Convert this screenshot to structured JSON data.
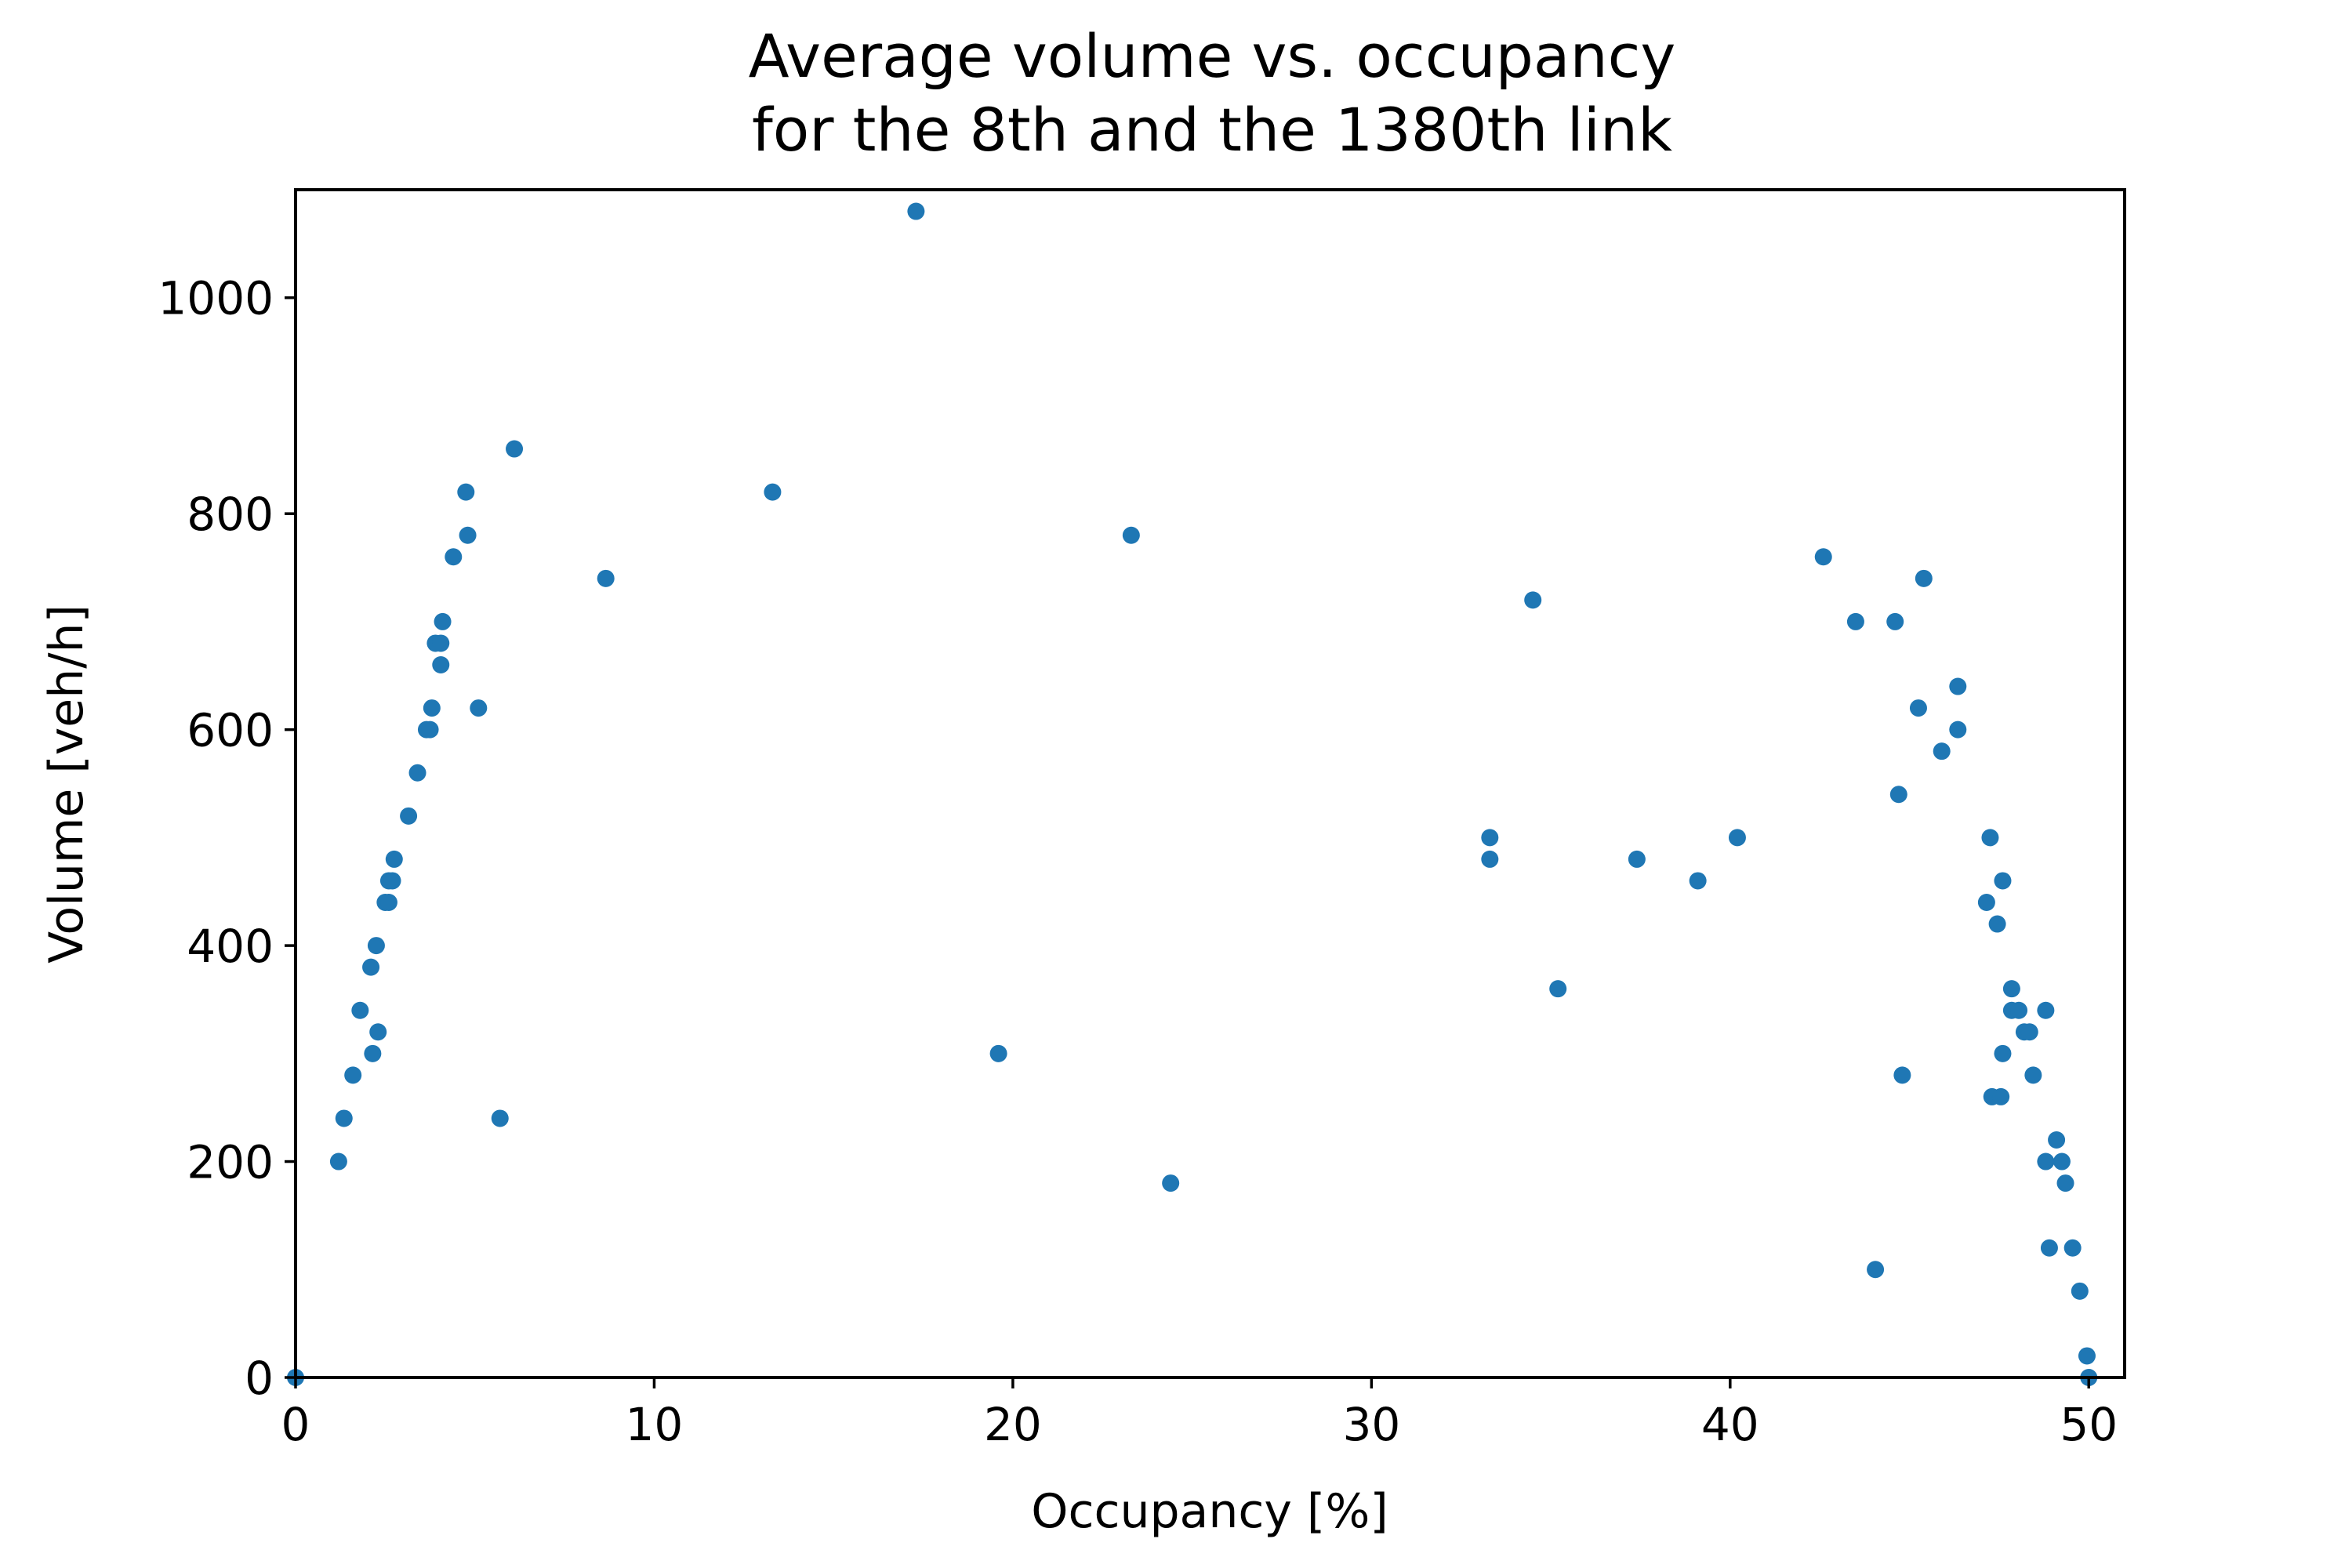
{
  "chart_data": {
    "type": "scatter",
    "title_lines": [
      "Average volume vs. occupancy",
      "for the 8th and the 1380th link"
    ],
    "xlabel": "Occupancy [%]",
    "ylabel": "Volume [veh/h]",
    "xlim": [
      0,
      51
    ],
    "ylim": [
      0,
      1100
    ],
    "x_ticks": [
      0,
      10,
      20,
      30,
      40,
      50
    ],
    "y_ticks": [
      0,
      200,
      400,
      600,
      800,
      1000
    ],
    "grid": false,
    "legend": "none",
    "point_color": "#1f77b4",
    "series": [
      {
        "points": [
          [
            0.0,
            0
          ],
          [
            1.2,
            200
          ],
          [
            1.35,
            240
          ],
          [
            1.6,
            280
          ],
          [
            1.8,
            340
          ],
          [
            2.1,
            380
          ],
          [
            2.15,
            300
          ],
          [
            2.25,
            400
          ],
          [
            2.3,
            320
          ],
          [
            2.5,
            440
          ],
          [
            2.6,
            440
          ],
          [
            2.6,
            460
          ],
          [
            2.7,
            460
          ],
          [
            2.75,
            480
          ],
          [
            3.15,
            520
          ],
          [
            3.4,
            560
          ],
          [
            3.65,
            600
          ],
          [
            3.75,
            600
          ],
          [
            3.8,
            620
          ],
          [
            3.9,
            680
          ],
          [
            4.05,
            680
          ],
          [
            4.05,
            660
          ],
          [
            4.1,
            700
          ],
          [
            4.4,
            760
          ],
          [
            4.75,
            820
          ],
          [
            4.8,
            780
          ],
          [
            5.1,
            620
          ],
          [
            5.7,
            240
          ],
          [
            6.1,
            860
          ],
          [
            8.65,
            740
          ],
          [
            13.3,
            820
          ],
          [
            17.3,
            1080
          ],
          [
            19.6,
            300
          ],
          [
            23.3,
            780
          ],
          [
            24.4,
            180
          ],
          [
            33.3,
            500
          ],
          [
            33.3,
            480
          ],
          [
            34.5,
            720
          ],
          [
            35.2,
            360
          ],
          [
            37.4,
            480
          ],
          [
            39.1,
            460
          ],
          [
            40.2,
            500
          ],
          [
            42.6,
            760
          ],
          [
            43.5,
            700
          ],
          [
            44.05,
            100
          ],
          [
            44.6,
            700
          ],
          [
            44.7,
            540
          ],
          [
            44.8,
            280
          ],
          [
            45.25,
            620
          ],
          [
            45.4,
            740
          ],
          [
            45.9,
            580
          ],
          [
            46.35,
            640
          ],
          [
            46.35,
            600
          ],
          [
            47.15,
            440
          ],
          [
            47.25,
            500
          ],
          [
            47.3,
            260
          ],
          [
            47.45,
            420
          ],
          [
            47.55,
            260
          ],
          [
            47.6,
            460
          ],
          [
            47.6,
            300
          ],
          [
            47.85,
            360
          ],
          [
            47.85,
            340
          ],
          [
            48.05,
            340
          ],
          [
            48.2,
            320
          ],
          [
            48.35,
            320
          ],
          [
            48.45,
            280
          ],
          [
            48.8,
            340
          ],
          [
            48.8,
            200
          ],
          [
            48.9,
            120
          ],
          [
            49.1,
            220
          ],
          [
            49.25,
            200
          ],
          [
            49.35,
            180
          ],
          [
            49.55,
            120
          ],
          [
            49.75,
            80
          ],
          [
            49.95,
            20
          ],
          [
            50.0,
            0
          ]
        ]
      }
    ]
  }
}
